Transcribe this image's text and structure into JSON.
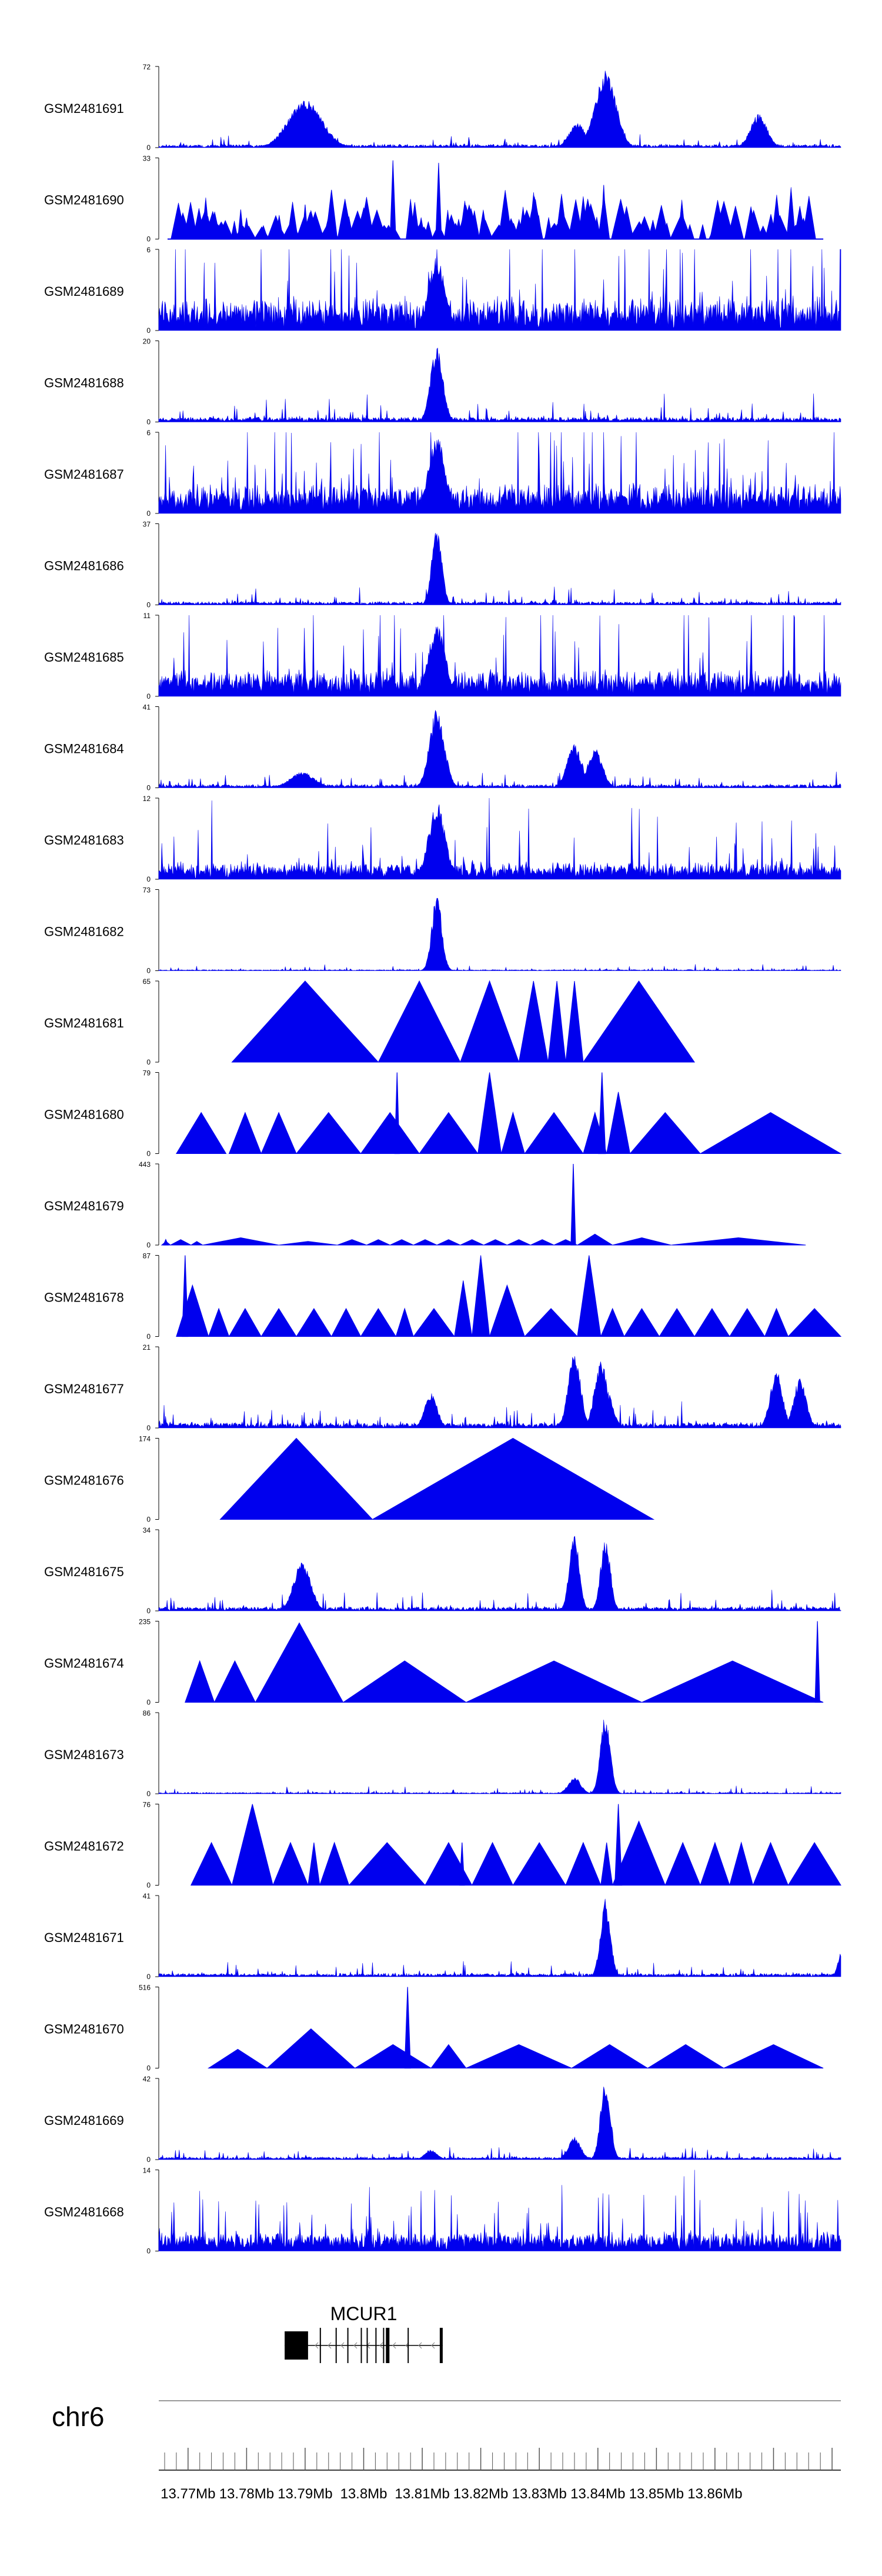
{
  "chart_data": {
    "type": "area",
    "title": "",
    "xlabel": "",
    "ylabel": "",
    "chromosome": "chr6",
    "xlim": [
      13.765,
      13.8815
    ],
    "x_unit": "Mb",
    "x_ticks": [
      13.77,
      13.78,
      13.79,
      13.8,
      13.81,
      13.82,
      13.83,
      13.84,
      13.85,
      13.86
    ],
    "x_tick_labels": [
      "13.77Mb",
      "13.78Mb",
      "13.79Mb",
      "13.8Mb",
      "13.81Mb",
      "13.82Mb",
      "13.83Mb",
      "13.84Mb",
      "13.85Mb",
      "13.86Mb"
    ],
    "tracks": [
      {
        "name": "GSM2481691",
        "ymax": 72,
        "mode": "dense",
        "base": 2,
        "noise": 4,
        "seed": 11,
        "peaks": [
          [
            13.79,
            0.004,
            44
          ],
          [
            13.8413,
            0.0025,
            70
          ],
          [
            13.8365,
            0.002,
            22
          ],
          [
            13.8675,
            0.002,
            30
          ]
        ],
        "segments": []
      },
      {
        "name": "GSM2481690",
        "ymax": 33,
        "mode": "spiky",
        "base": 0,
        "noise": 0,
        "seed": 22,
        "peaks": [],
        "segments": [
          [
            13.7785,
            13.7795,
            12
          ],
          [
            13.7895,
            13.7905,
            14
          ],
          [
            13.7935,
            13.7955,
            20
          ],
          [
            13.8045,
            13.8055,
            32
          ],
          [
            13.8123,
            13.8133,
            31
          ],
          [
            13.8405,
            13.8415,
            22
          ]
        ]
      },
      {
        "name": "GSM2481689",
        "ymax": 6,
        "mode": "dense",
        "base": 1.5,
        "noise": 3.5,
        "seed": 33,
        "peaks": [
          [
            13.8125,
            0.002,
            5.5
          ]
        ],
        "segments": []
      },
      {
        "name": "GSM2481688",
        "ymax": 20,
        "mode": "dense",
        "base": 0.6,
        "noise": 2.5,
        "seed": 44,
        "peaks": [
          [
            13.8125,
            0.0015,
            19
          ]
        ],
        "segments": []
      },
      {
        "name": "GSM2481687",
        "ymax": 6,
        "mode": "dense",
        "base": 1.2,
        "noise": 3.5,
        "seed": 55,
        "peaks": [
          [
            13.8125,
            0.002,
            5.8
          ]
        ],
        "segments": []
      },
      {
        "name": "GSM2481686",
        "ymax": 37,
        "mode": "dense",
        "base": 0.8,
        "noise": 3,
        "seed": 66,
        "peaks": [
          [
            13.8125,
            0.0012,
            36
          ]
        ],
        "segments": []
      },
      {
        "name": "GSM2481685",
        "ymax": 11,
        "mode": "dense",
        "base": 2,
        "noise": 6,
        "seed": 77,
        "peaks": [
          [
            13.8125,
            0.002,
            10
          ]
        ],
        "segments": []
      },
      {
        "name": "GSM2481684",
        "ymax": 41,
        "mode": "dense",
        "base": 1,
        "noise": 3,
        "seed": 88,
        "peaks": [
          [
            13.8125,
            0.0018,
            40
          ],
          [
            13.836,
            0.0018,
            22
          ],
          [
            13.8395,
            0.0018,
            20
          ],
          [
            13.7895,
            0.003,
            8
          ]
        ],
        "segments": []
      },
      {
        "name": "GSM2481683",
        "ymax": 12,
        "mode": "dense",
        "base": 1.5,
        "noise": 4,
        "seed": 99,
        "peaks": [
          [
            13.8125,
            0.002,
            11.5
          ]
        ],
        "segments": []
      },
      {
        "name": "GSM2481682",
        "ymax": 73,
        "mode": "dense",
        "base": 0.5,
        "noise": 2,
        "seed": 101,
        "peaks": [
          [
            13.8125,
            0.0012,
            70
          ]
        ],
        "segments": []
      },
      {
        "name": "GSM2481681",
        "ymax": 65,
        "mode": "tri",
        "base": 0,
        "noise": 0,
        "seed": 111,
        "peaks": [],
        "segments": [
          [
            13.7775,
            13.8025,
            65
          ],
          [
            13.8025,
            13.8165,
            65
          ],
          [
            13.8165,
            13.8265,
            65
          ],
          [
            13.8265,
            13.8315,
            65
          ],
          [
            13.8315,
            13.8345,
            65
          ],
          [
            13.8345,
            13.8375,
            65
          ],
          [
            13.8375,
            13.8565,
            65
          ]
        ]
      },
      {
        "name": "GSM2481680",
        "ymax": 79,
        "mode": "tri",
        "base": 0,
        "noise": 0,
        "seed": 121,
        "peaks": [
          [
            13.8057,
            0.0004,
            79
          ],
          [
            13.8407,
            0.0006,
            79
          ]
        ],
        "segments": [
          [
            13.768,
            13.7765,
            40
          ],
          [
            13.777,
            13.7825,
            40
          ],
          [
            13.7825,
            13.7885,
            40
          ],
          [
            13.7885,
            13.7995,
            40
          ],
          [
            13.7995,
            13.8095,
            40
          ],
          [
            13.8095,
            13.8195,
            40
          ],
          [
            13.8195,
            13.8235,
            79
          ],
          [
            13.8235,
            13.8275,
            40
          ],
          [
            13.8275,
            13.8375,
            40
          ],
          [
            13.8375,
            13.8415,
            40
          ],
          [
            13.8415,
            13.8455,
            60
          ],
          [
            13.8455,
            13.8575,
            40
          ],
          [
            13.8575,
            13.8815,
            40
          ]
        ]
      },
      {
        "name": "GSM2481679",
        "ymax": 443,
        "mode": "tri",
        "base": 0,
        "noise": 0,
        "seed": 131,
        "peaks": [
          [
            13.8358,
            0.0004,
            443
          ],
          [
            13.7662,
            0.0004,
            30
          ]
        ],
        "segments": [
          [
            13.7655,
            13.767,
            20
          ],
          [
            13.767,
            13.7705,
            30
          ],
          [
            13.7705,
            13.7725,
            20
          ],
          [
            13.7725,
            13.7855,
            40
          ],
          [
            13.7855,
            13.7955,
            20
          ],
          [
            13.7955,
            13.8005,
            30
          ],
          [
            13.8005,
            13.8045,
            30
          ],
          [
            13.8045,
            13.8085,
            30
          ],
          [
            13.8085,
            13.8125,
            30
          ],
          [
            13.8125,
            13.8165,
            30
          ],
          [
            13.8165,
            13.8205,
            30
          ],
          [
            13.8205,
            13.8245,
            30
          ],
          [
            13.8245,
            13.8285,
            30
          ],
          [
            13.8285,
            13.8325,
            30
          ],
          [
            13.8325,
            13.8365,
            30
          ],
          [
            13.8365,
            13.8425,
            60
          ],
          [
            13.8425,
            13.8525,
            40
          ],
          [
            13.8525,
            13.8755,
            40
          ]
        ]
      },
      {
        "name": "GSM2481678",
        "ymax": 87,
        "mode": "tri",
        "base": 0,
        "noise": 0,
        "seed": 141,
        "peaks": [
          [
            13.7695,
            0.0005,
            87
          ]
        ],
        "segments": [
          [
            13.768,
            13.7735,
            55
          ],
          [
            13.7735,
            13.777,
            30
          ],
          [
            13.777,
            13.7825,
            30
          ],
          [
            13.7825,
            13.7885,
            30
          ],
          [
            13.7885,
            13.7945,
            30
          ],
          [
            13.7945,
            13.7995,
            30
          ],
          [
            13.7995,
            13.8055,
            30
          ],
          [
            13.8055,
            13.8085,
            30
          ],
          [
            13.8085,
            13.8155,
            30
          ],
          [
            13.8155,
            13.8185,
            60
          ],
          [
            13.8185,
            13.8215,
            87
          ],
          [
            13.8215,
            13.8275,
            55
          ],
          [
            13.8275,
            13.8365,
            30
          ],
          [
            13.8365,
            13.8405,
            87
          ],
          [
            13.8405,
            13.8445,
            30
          ],
          [
            13.8445,
            13.8505,
            30
          ],
          [
            13.8505,
            13.8565,
            30
          ],
          [
            13.8565,
            13.8625,
            30
          ],
          [
            13.8625,
            13.8685,
            30
          ],
          [
            13.8685,
            13.8725,
            30
          ],
          [
            13.8725,
            13.8815,
            30
          ]
        ]
      },
      {
        "name": "GSM2481677",
        "ymax": 21,
        "mode": "dense",
        "base": 0.8,
        "noise": 2.5,
        "seed": 151,
        "peaks": [
          [
            13.836,
            0.0015,
            20
          ],
          [
            13.8405,
            0.0015,
            18
          ],
          [
            13.8415,
            0.0015,
            10
          ],
          [
            13.8705,
            0.0015,
            15
          ],
          [
            13.8745,
            0.0015,
            13
          ],
          [
            13.8115,
            0.0015,
            9
          ]
        ],
        "segments": []
      },
      {
        "name": "GSM2481676",
        "ymax": 174,
        "mode": "tri",
        "base": 0,
        "noise": 0,
        "seed": 161,
        "peaks": [],
        "segments": [
          [
            13.7755,
            13.8015,
            174
          ],
          [
            13.8015,
            13.8495,
            174
          ]
        ]
      },
      {
        "name": "GSM2481675",
        "ymax": 34,
        "mode": "dense",
        "base": 1,
        "noise": 3,
        "seed": 171,
        "peaks": [
          [
            13.836,
            0.0012,
            33
          ],
          [
            13.8413,
            0.0012,
            30
          ],
          [
            13.7895,
            0.002,
            22
          ]
        ],
        "segments": []
      },
      {
        "name": "GSM2481674",
        "ymax": 235,
        "mode": "tri",
        "base": 0,
        "noise": 0,
        "seed": 181,
        "peaks": [
          [
            13.8775,
            0.0004,
            235
          ]
        ],
        "segments": [
          [
            13.7695,
            13.7745,
            120
          ],
          [
            13.7745,
            13.7815,
            120
          ],
          [
            13.7815,
            13.7965,
            230
          ],
          [
            13.7965,
            13.8175,
            120
          ],
          [
            13.8175,
            13.8475,
            120
          ],
          [
            13.8475,
            13.8785,
            120
          ]
        ]
      },
      {
        "name": "GSM2481673",
        "ymax": 86,
        "mode": "dense",
        "base": 0.8,
        "noise": 3,
        "seed": 191,
        "peaks": [
          [
            13.8413,
            0.0012,
            85
          ],
          [
            13.836,
            0.0015,
            18
          ]
        ],
        "segments": []
      },
      {
        "name": "GSM2481672",
        "ymax": 76,
        "mode": "tri",
        "base": 0,
        "noise": 0,
        "seed": 201,
        "peaks": [
          [
            13.8435,
            0.0006,
            76
          ],
          [
            13.8168,
            0.0004,
            40
          ]
        ],
        "segments": [
          [
            13.7705,
            13.7775,
            40
          ],
          [
            13.7775,
            13.7845,
            76
          ],
          [
            13.7845,
            13.7905,
            40
          ],
          [
            13.7905,
            13.7925,
            40
          ],
          [
            13.7925,
            13.7975,
            40
          ],
          [
            13.7975,
            13.8105,
            40
          ],
          [
            13.8105,
            13.8185,
            40
          ],
          [
            13.8185,
            13.8255,
            40
          ],
          [
            13.8255,
            13.8345,
            40
          ],
          [
            13.8345,
            13.8405,
            40
          ],
          [
            13.8405,
            13.8425,
            40
          ],
          [
            13.8425,
            13.8515,
            60
          ],
          [
            13.8515,
            13.8575,
            40
          ],
          [
            13.8575,
            13.8625,
            40
          ],
          [
            13.8625,
            13.8665,
            40
          ],
          [
            13.8665,
            13.8725,
            40
          ],
          [
            13.8725,
            13.8815,
            40
          ]
        ]
      },
      {
        "name": "GSM2481671",
        "ymax": 41,
        "mode": "dense",
        "base": 1,
        "noise": 3,
        "seed": 211,
        "peaks": [
          [
            13.8413,
            0.0012,
            40
          ],
          [
            13.8815,
            0.0008,
            12
          ]
        ],
        "segments": []
      },
      {
        "name": "GSM2481670",
        "ymax": 516,
        "mode": "tri",
        "base": 0,
        "noise": 0,
        "seed": 221,
        "peaks": [
          [
            13.8075,
            0.0005,
            516
          ]
        ],
        "segments": [
          [
            13.7735,
            13.7835,
            120
          ],
          [
            13.7835,
            13.7985,
            250
          ],
          [
            13.7985,
            13.8115,
            150
          ],
          [
            13.8115,
            13.8175,
            150
          ],
          [
            13.8175,
            13.8355,
            150
          ],
          [
            13.8355,
            13.8485,
            150
          ],
          [
            13.8485,
            13.8615,
            150
          ],
          [
            13.8615,
            13.8785,
            150
          ]
        ]
      },
      {
        "name": "GSM2481669",
        "ymax": 42,
        "mode": "dense",
        "base": 0.8,
        "noise": 2.5,
        "seed": 231,
        "peaks": [
          [
            13.8413,
            0.0012,
            42
          ],
          [
            13.836,
            0.0015,
            12
          ],
          [
            13.8115,
            0.0015,
            5
          ]
        ],
        "segments": []
      },
      {
        "name": "GSM2481668",
        "ymax": 14,
        "mode": "dense",
        "base": 2,
        "noise": 5,
        "seed": 241,
        "peaks": [],
        "segments": []
      }
    ],
    "gene": {
      "name": "MCUR1",
      "start": 13.7865,
      "end": 13.8135,
      "exons": [
        [
          13.7865,
          13.7905
        ],
        [
          13.7925,
          13.7926
        ],
        [
          13.7952,
          13.7953
        ],
        [
          13.7972,
          13.7973
        ],
        [
          13.7995,
          13.7996
        ],
        [
          13.8005,
          13.8006
        ],
        [
          13.802,
          13.8021
        ],
        [
          13.8033,
          13.8034
        ],
        [
          13.8038,
          13.8044
        ],
        [
          13.8075,
          13.8076
        ],
        [
          13.813,
          13.8135
        ]
      ]
    }
  }
}
